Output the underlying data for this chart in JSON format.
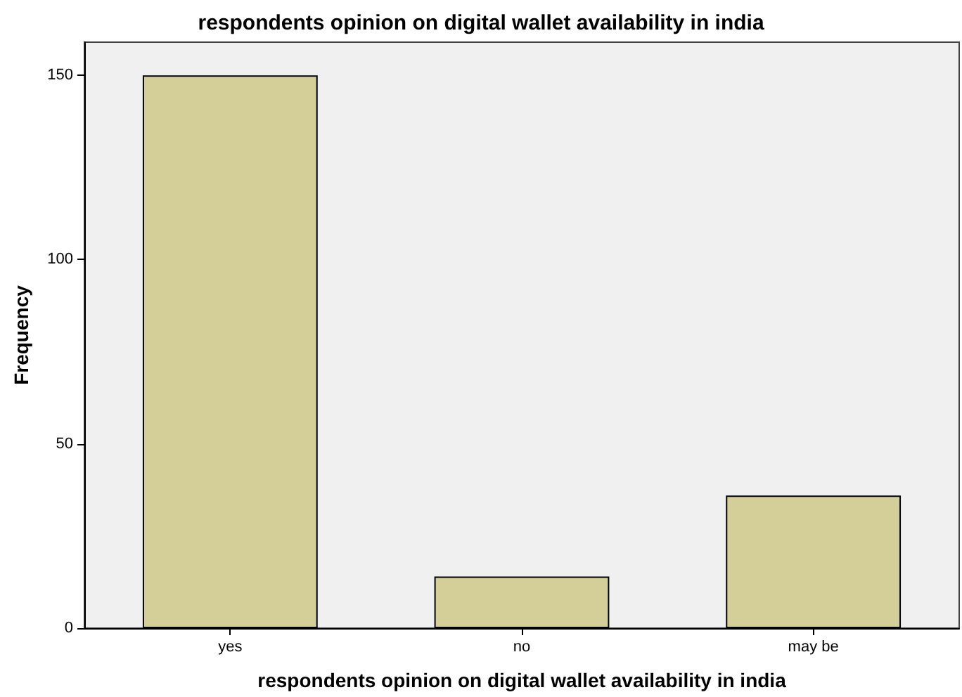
{
  "chart_data": {
    "type": "bar",
    "title": "respondents opinion on digital wallet availability in india",
    "xlabel": "respondents opinion on digital wallet availability in india",
    "ylabel": "Frequency",
    "categories": [
      "yes",
      "no",
      "may be"
    ],
    "values": [
      150,
      14,
      36
    ],
    "color": "#d4cf98",
    "ylim": [
      0,
      159
    ],
    "yticks": [
      0,
      50,
      100,
      150
    ],
    "grid": false
  }
}
